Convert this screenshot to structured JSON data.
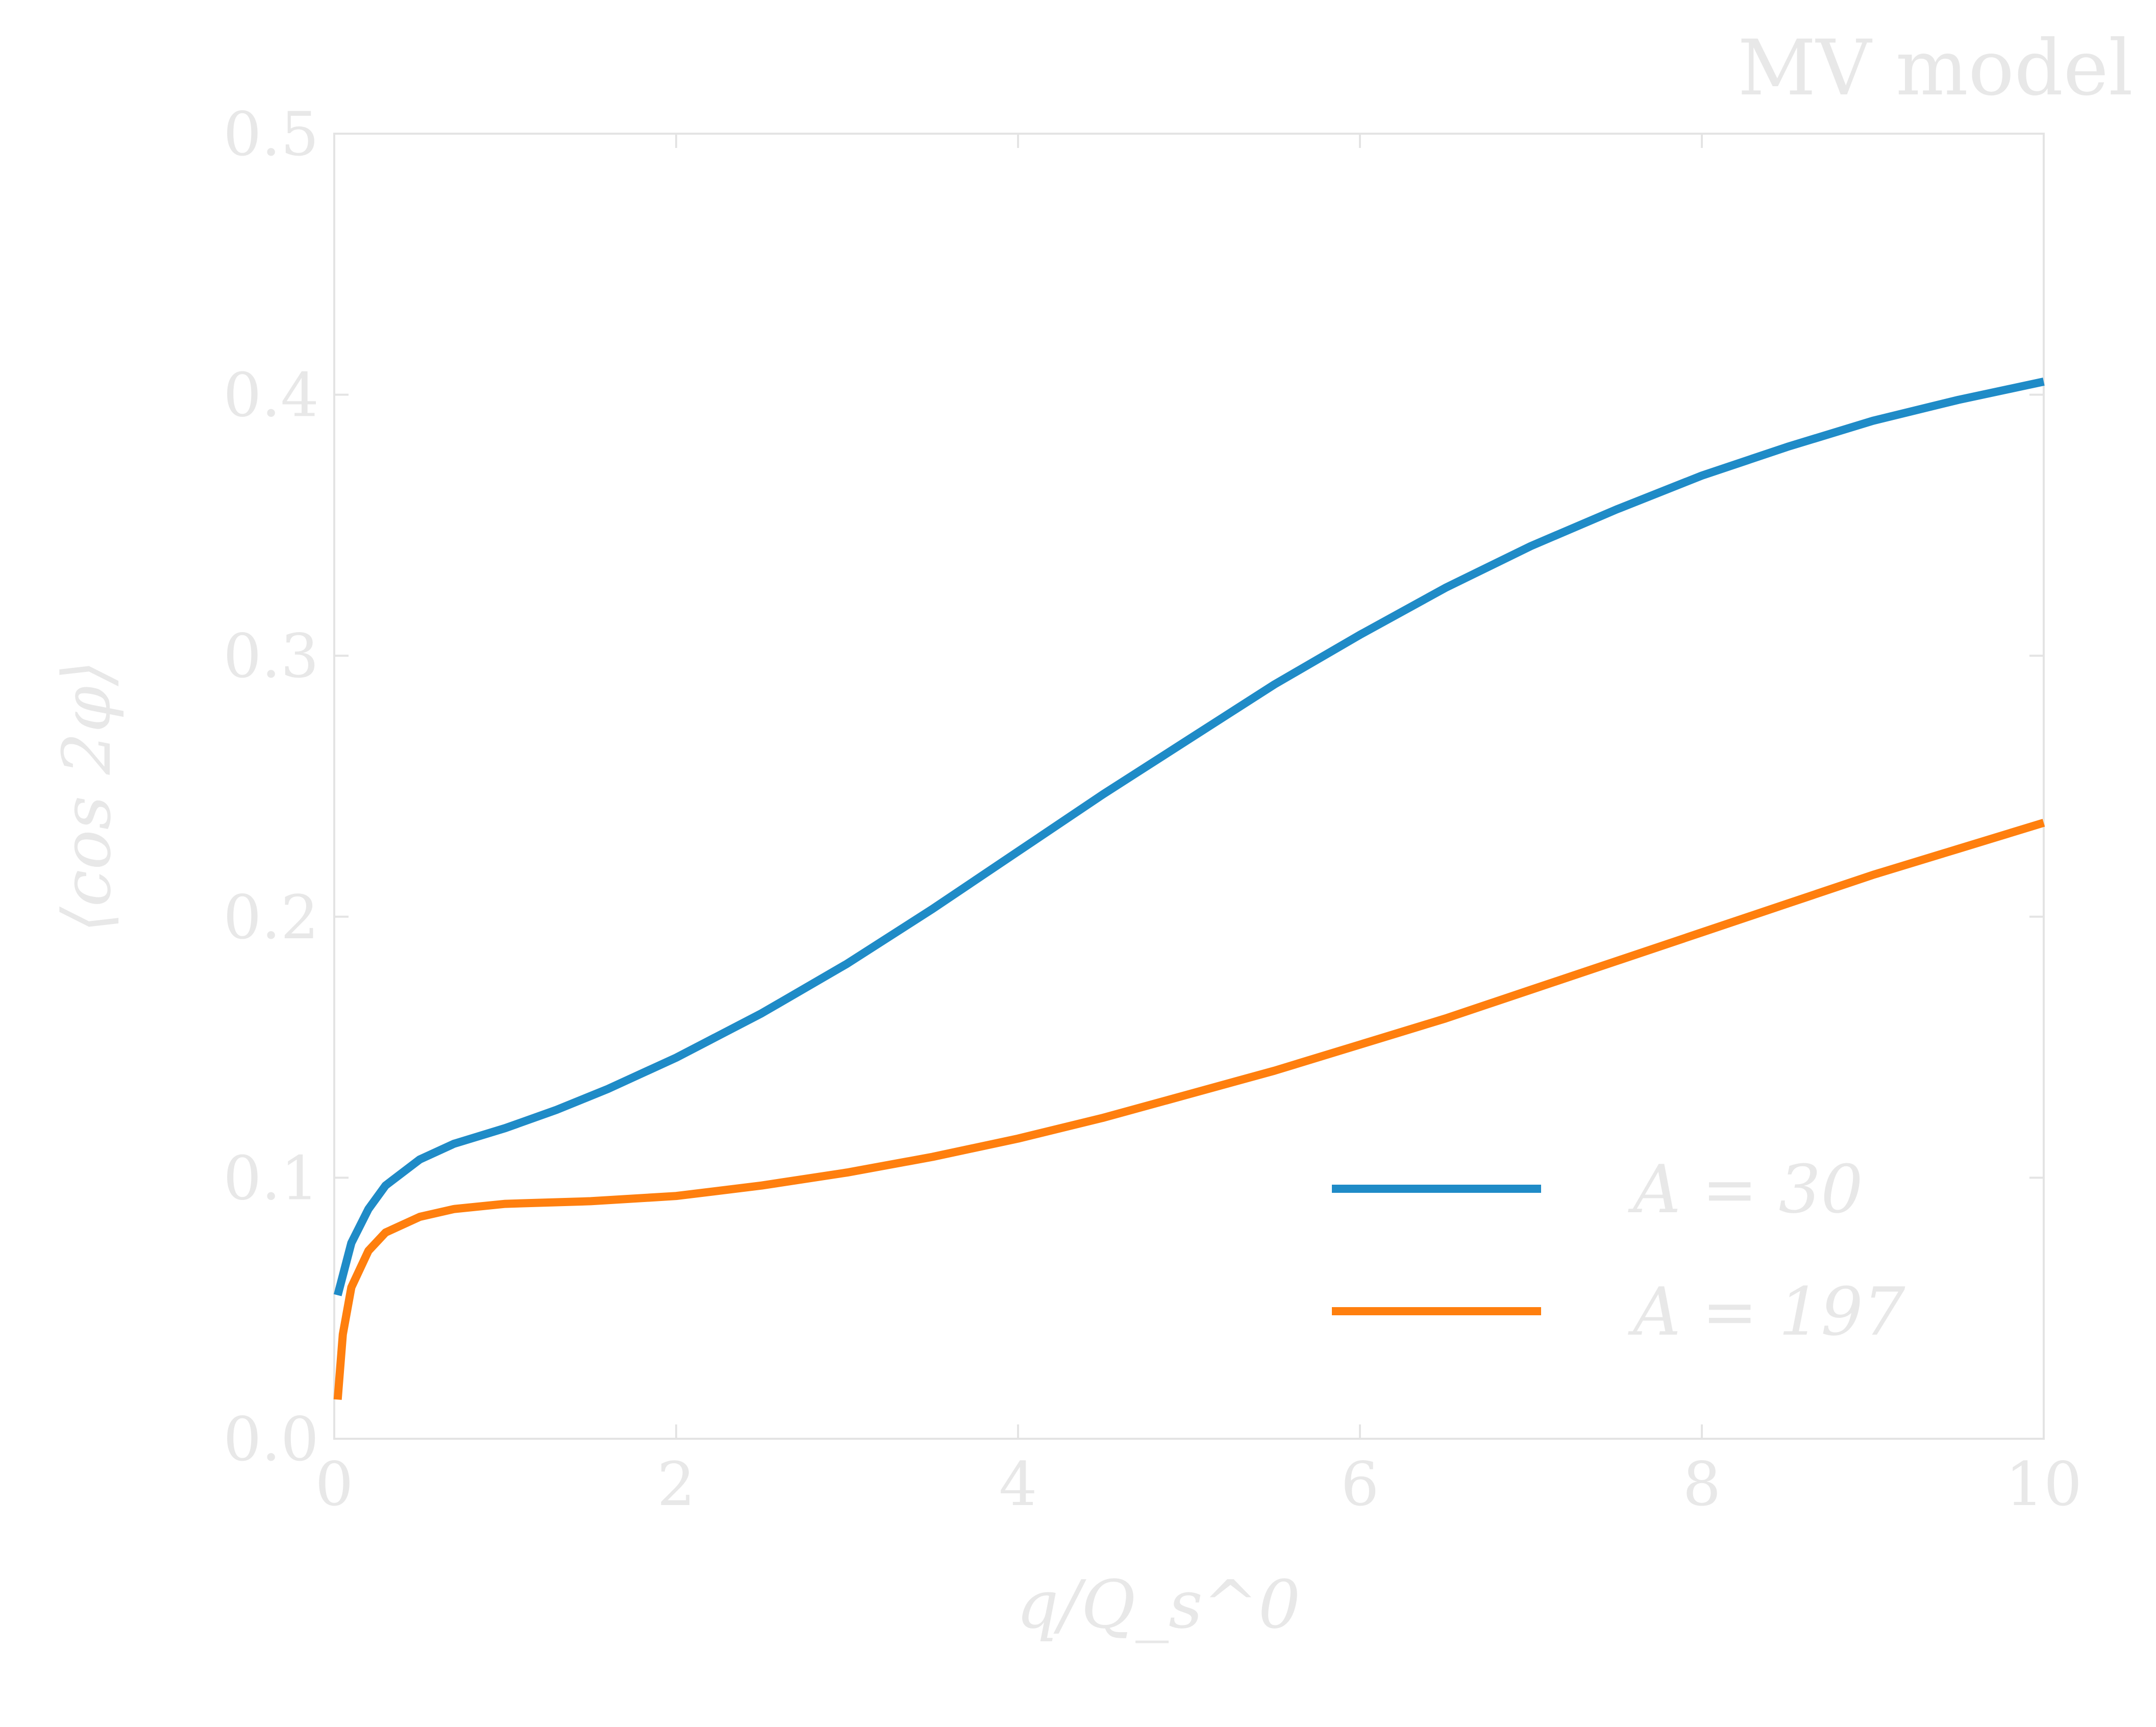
{
  "chart_data": {
    "type": "line",
    "title": "MV model",
    "xlabel": "q/Q_s^0",
    "ylabel": "⟨cos 2φ⟩",
    "xlim": [
      0,
      10
    ],
    "ylim": [
      0,
      0.5
    ],
    "x_ticks": [
      "0",
      "2",
      "4",
      "6",
      "8",
      "10"
    ],
    "y_ticks": [
      "0.0",
      "0.1",
      "0.2",
      "0.3",
      "0.4",
      "0.5"
    ],
    "grid": false,
    "legend_position": "lower-right",
    "series": [
      {
        "name": "A = 30",
        "color": "#1f8bc7",
        "x": [
          0.02,
          0.1,
          0.2,
          0.3,
          0.5,
          0.7,
          1.0,
          1.3,
          1.6,
          2.0,
          2.5,
          3.0,
          3.5,
          4.0,
          4.5,
          5.0,
          5.5,
          6.0,
          6.5,
          7.0,
          7.5,
          8.0,
          8.5,
          9.0,
          9.5,
          10.0
        ],
        "y": [
          0.055,
          0.075,
          0.088,
          0.097,
          0.107,
          0.113,
          0.119,
          0.126,
          0.134,
          0.146,
          0.163,
          0.182,
          0.203,
          0.225,
          0.247,
          0.268,
          0.289,
          0.308,
          0.326,
          0.342,
          0.356,
          0.369,
          0.38,
          0.39,
          0.398,
          0.405
        ]
      },
      {
        "name": "A = 197",
        "color": "#ff7f0e",
        "x": [
          0.02,
          0.05,
          0.1,
          0.2,
          0.3,
          0.5,
          0.7,
          1.0,
          1.5,
          2.0,
          2.5,
          3.0,
          3.5,
          4.0,
          4.5,
          5.0,
          5.5,
          6.0,
          6.5,
          7.0,
          7.5,
          8.0,
          8.5,
          9.0,
          9.5,
          10.0
        ],
        "y": [
          0.015,
          0.04,
          0.058,
          0.072,
          0.079,
          0.085,
          0.088,
          0.09,
          0.091,
          0.093,
          0.097,
          0.102,
          0.108,
          0.115,
          0.123,
          0.132,
          0.141,
          0.151,
          0.161,
          0.172,
          0.183,
          0.194,
          0.205,
          0.216,
          0.226,
          0.236
        ]
      }
    ]
  }
}
